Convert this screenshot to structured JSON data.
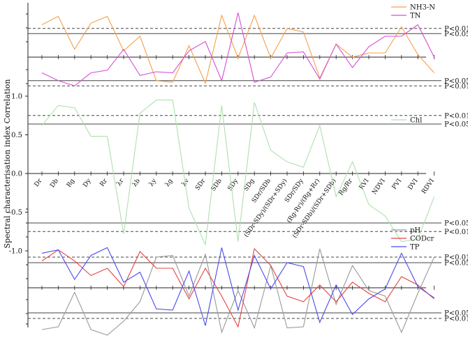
{
  "chart_data": {
    "type": "line",
    "ylabel": "Spectral characterisation index Correlation",
    "categories": [
      "Dr",
      "Db",
      "Rg",
      "Dy",
      "Rr",
      "λr",
      "λb",
      "λy",
      "λg",
      "λv",
      "SDr",
      "SDb",
      "SDy",
      "SDg",
      "SDr/SDb",
      "(SDr-SDy)/(SDr+SDy)",
      "SDr/SDy",
      "(Rg-Rr)/(Rg+Rr)",
      "(SDr-SDb)/(SDr+SDb)",
      "Rg/Rr",
      "RVI",
      "NDVI",
      "PVI",
      "DVI",
      "RDVI"
    ],
    "yticks": [
      "1.0",
      "0.5",
      "0.0",
      "-0.5",
      "-1.0"
    ],
    "ylim": [
      -1.0,
      1.0
    ],
    "panels": [
      {
        "id": "top",
        "series": [
          {
            "name": "NH3-N",
            "color": "#f5a04a",
            "values": [
              0.62,
              0.78,
              0.15,
              0.65,
              0.78,
              0.12,
              0.4,
              -0.45,
              -0.48,
              0.22,
              -0.5,
              0.8,
              -0.02,
              0.8,
              -0.02,
              0.55,
              0.48,
              -0.4,
              0.25,
              0.0,
              0.08,
              0.08,
              0.58,
              0.05,
              -0.3
            ]
          },
          {
            "name": "TN",
            "color": "#d64ed6",
            "values": [
              -0.3,
              -0.45,
              -0.55,
              -0.3,
              -0.25,
              0.15,
              -0.35,
              -0.28,
              -0.3,
              0.12,
              0.3,
              -0.45,
              0.85,
              -0.48,
              -0.38,
              0.08,
              0.1,
              -0.42,
              0.25,
              -0.2,
              0.2,
              0.4,
              0.4,
              0.62,
              0.0
            ]
          }
        ],
        "thresholds": [
          {
            "label": "P<0.01",
            "style": "dashed",
            "value": 0.55
          },
          {
            "label": "P<0.05",
            "style": "solid",
            "value": 0.45
          },
          {
            "label": "P<0.05",
            "style": "solid",
            "value": -0.45
          },
          {
            "label": "P<0.01",
            "style": "dashed",
            "value": -0.55
          }
        ]
      },
      {
        "id": "middle",
        "series": [
          {
            "name": "Chl",
            "color": "#aee0ae",
            "values": [
              0.62,
              0.88,
              0.85,
              0.48,
              0.48,
              -0.78,
              0.78,
              0.95,
              0.95,
              -0.45,
              -0.92,
              0.88,
              -0.88,
              0.92,
              0.3,
              0.15,
              0.08,
              0.62,
              -0.3,
              0.15,
              -0.4,
              -0.55,
              -0.88,
              -0.85,
              -0.3
            ]
          }
        ],
        "thresholds": [
          {
            "label": "P<0.01",
            "style": "dashed",
            "value": 0.75
          },
          {
            "label": "P<0.05",
            "style": "solid",
            "value": 0.64
          },
          {
            "label": "P<0.05",
            "style": "solid",
            "value": -0.64
          },
          {
            "label": "P<0.01",
            "style": "dashed",
            "value": -0.75
          }
        ]
      },
      {
        "id": "bottom",
        "series": [
          {
            "name": "pH",
            "color": "#999999",
            "values": [
              -0.75,
              -0.7,
              -0.08,
              -0.75,
              -0.85,
              -0.6,
              -0.25,
              0.55,
              0.58,
              -0.15,
              0.6,
              -0.8,
              -0.05,
              -0.72,
              0.4,
              -0.72,
              -0.7,
              0.7,
              -0.3,
              0.4,
              -0.05,
              -0.15,
              -0.8,
              -0.1,
              0.55
            ]
          },
          {
            "name": "CODcr",
            "color": "#e84040",
            "values": [
              0.48,
              0.68,
              0.48,
              0.22,
              0.35,
              0.02,
              0.65,
              0.35,
              0.35,
              -0.2,
              0.35,
              -0.15,
              -0.7,
              0.7,
              0.4,
              -0.15,
              -0.25,
              0.05,
              -0.25,
              0.1,
              -0.1,
              -0.25,
              0.2,
              0.05,
              -0.2
            ]
          },
          {
            "name": "TP",
            "color": "#4a4aee",
            "values": [
              0.62,
              0.68,
              0.15,
              0.58,
              0.72,
              0.1,
              0.28,
              -0.38,
              -0.4,
              0.3,
              -0.68,
              0.72,
              -0.4,
              0.58,
              -0.02,
              0.45,
              0.38,
              -0.62,
              0.05,
              -0.48,
              -0.2,
              -0.02,
              0.62,
              0.02,
              -0.18
            ]
          }
        ],
        "thresholds": [
          {
            "label": "P<0.01",
            "style": "dashed",
            "value": 0.55
          },
          {
            "label": "P<0.05",
            "style": "solid",
            "value": 0.45
          },
          {
            "label": "P<0.05",
            "style": "solid",
            "value": -0.45
          },
          {
            "label": "P<0.01",
            "style": "dashed",
            "value": -0.55
          }
        ]
      }
    ]
  }
}
